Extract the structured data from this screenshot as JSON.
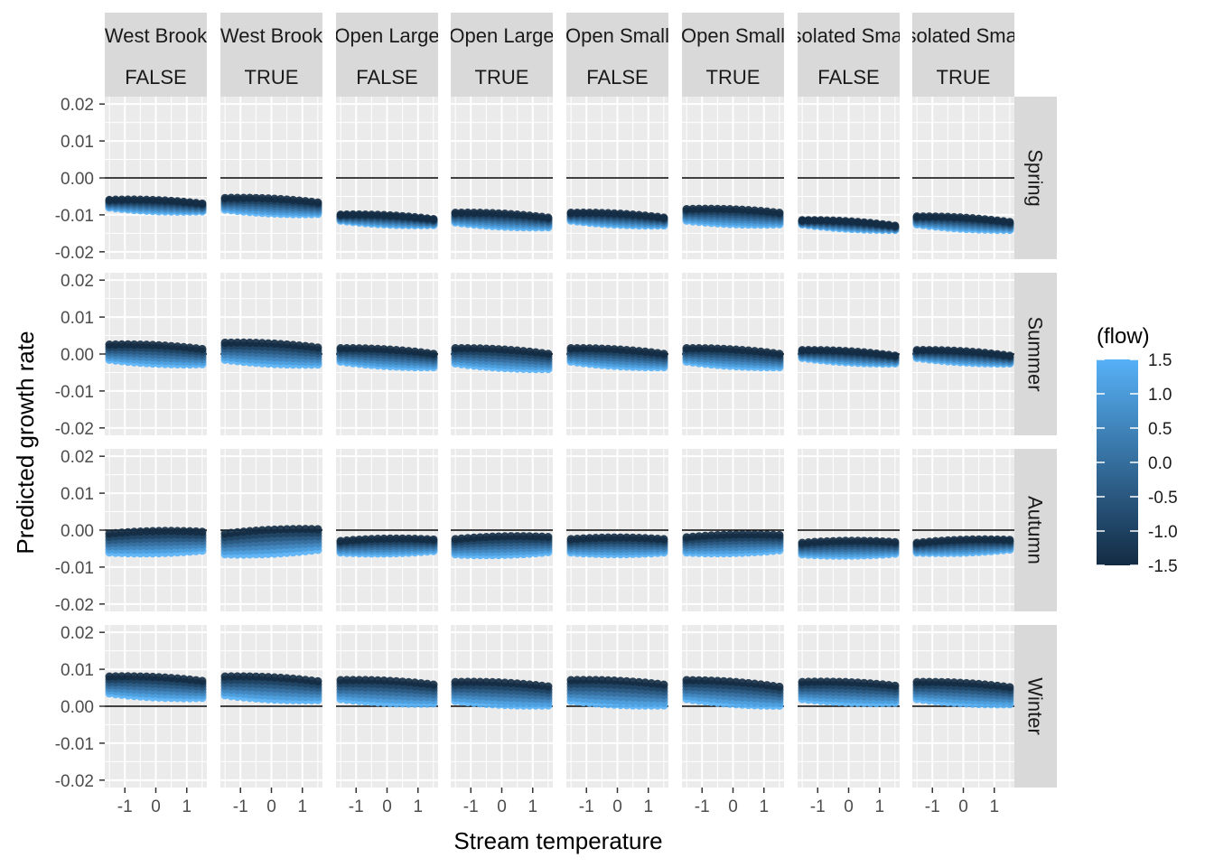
{
  "chart_data": {
    "type": "scatter",
    "title": "",
    "xlabel": "Stream temperature",
    "ylabel": "Predicted growth rate",
    "xlim": [
      -1.65,
      1.65
    ],
    "ylim": [
      -0.022,
      0.022
    ],
    "x_ticks": [
      "-1",
      "0",
      "1"
    ],
    "y_ticks": [
      "0.02",
      "0.01",
      "0.00",
      "-0.01",
      "-0.02"
    ],
    "reference_line_y": 0,
    "column_strips": [
      {
        "river": "West Brook",
        "flag": "FALSE"
      },
      {
        "river": "West Brook",
        "flag": "TRUE"
      },
      {
        "river": "Open Large",
        "flag": "FALSE"
      },
      {
        "river": "Open Large",
        "flag": "TRUE"
      },
      {
        "river": "Open Small",
        "flag": "FALSE"
      },
      {
        "river": "Open Small",
        "flag": "TRUE"
      },
      {
        "river": "Isolated Small",
        "flag": "FALSE"
      },
      {
        "river": "Isolated Small",
        "flag": "TRUE"
      }
    ],
    "row_strips": [
      "Spring",
      "Summer",
      "Autumn",
      "Winter"
    ],
    "temperature_values": [
      -1.5,
      -1.3,
      -1.1,
      -0.9,
      -0.7,
      -0.5,
      -0.3,
      -0.1,
      0.1,
      0.3,
      0.5,
      0.7,
      0.9,
      1.1,
      1.3,
      1.5
    ],
    "flow_values": [
      -1.5,
      -1.0,
      -0.5,
      0.0,
      0.5,
      1.0,
      1.5
    ],
    "color_legend": {
      "title": "(flow)",
      "labels": [
        "1.5",
        "1.0",
        "0.5",
        "0.0",
        "-0.5",
        "-1.0",
        "-1.5"
      ],
      "values": [
        1.5,
        1.0,
        0.5,
        0.0,
        -0.5,
        -1.0,
        -1.5
      ],
      "low_color": "#132B43",
      "high_color": "#56B1F7"
    },
    "panel_background": "#EBEBEB",
    "grid": true,
    "legend_position": "right",
    "series_description_fields": [
      "row",
      "col",
      "dark_line_y",
      "light_line_y",
      "slope"
    ],
    "series": [
      {
        "row": "Spring",
        "col": 0,
        "upper": -0.0055,
        "lower": -0.0085,
        "slope": -0.001
      },
      {
        "row": "Spring",
        "col": 1,
        "upper": -0.005,
        "lower": -0.009,
        "slope": -0.0012
      },
      {
        "row": "Spring",
        "col": 2,
        "upper": -0.0095,
        "lower": -0.012,
        "slope": -0.0012
      },
      {
        "row": "Spring",
        "col": 3,
        "upper": -0.009,
        "lower": -0.0125,
        "slope": -0.0013
      },
      {
        "row": "Spring",
        "col": 4,
        "upper": -0.009,
        "lower": -0.012,
        "slope": -0.0013
      },
      {
        "row": "Spring",
        "col": 5,
        "upper": -0.008,
        "lower": -0.012,
        "slope": -0.001
      },
      {
        "row": "Spring",
        "col": 6,
        "upper": -0.011,
        "lower": -0.013,
        "slope": -0.0015
      },
      {
        "row": "Spring",
        "col": 7,
        "upper": -0.01,
        "lower": -0.013,
        "slope": -0.0015
      },
      {
        "row": "Summer",
        "col": 0,
        "upper": 0.003,
        "lower": -0.002,
        "slope": -0.0012
      },
      {
        "row": "Summer",
        "col": 1,
        "upper": 0.0035,
        "lower": -0.002,
        "slope": -0.0013
      },
      {
        "row": "Summer",
        "col": 2,
        "upper": 0.002,
        "lower": -0.0025,
        "slope": -0.0015
      },
      {
        "row": "Summer",
        "col": 3,
        "upper": 0.002,
        "lower": -0.003,
        "slope": -0.0015
      },
      {
        "row": "Summer",
        "col": 4,
        "upper": 0.002,
        "lower": -0.0025,
        "slope": -0.0015
      },
      {
        "row": "Summer",
        "col": 5,
        "upper": 0.002,
        "lower": -0.0025,
        "slope": -0.0015
      },
      {
        "row": "Summer",
        "col": 6,
        "upper": 0.0015,
        "lower": -0.0015,
        "slope": -0.0015
      },
      {
        "row": "Summer",
        "col": 7,
        "upper": 0.0015,
        "lower": -0.0015,
        "slope": -0.0015
      },
      {
        "row": "Autumn",
        "col": 0,
        "upper": -0.0005,
        "lower": -0.0065,
        "slope": 0.0005
      },
      {
        "row": "Autumn",
        "col": 1,
        "upper": -0.0005,
        "lower": -0.007,
        "slope": 0.0012
      },
      {
        "row": "Autumn",
        "col": 2,
        "upper": -0.0025,
        "lower": -0.0065,
        "slope": 0.0004
      },
      {
        "row": "Autumn",
        "col": 3,
        "upper": -0.002,
        "lower": -0.007,
        "slope": 0.0006
      },
      {
        "row": "Autumn",
        "col": 4,
        "upper": -0.002,
        "lower": -0.0065,
        "slope": 0.0
      },
      {
        "row": "Autumn",
        "col": 5,
        "upper": -0.0015,
        "lower": -0.0065,
        "slope": 0.0006
      },
      {
        "row": "Autumn",
        "col": 6,
        "upper": -0.003,
        "lower": -0.007,
        "slope": 0.0002
      },
      {
        "row": "Autumn",
        "col": 7,
        "upper": -0.003,
        "lower": -0.0065,
        "slope": 0.0008
      },
      {
        "row": "Winter",
        "col": 0,
        "upper": 0.0085,
        "lower": 0.003,
        "slope": -0.0012
      },
      {
        "row": "Winter",
        "col": 1,
        "upper": 0.0085,
        "lower": 0.0025,
        "slope": -0.0013
      },
      {
        "row": "Winter",
        "col": 2,
        "upper": 0.0075,
        "lower": 0.0015,
        "slope": -0.0012
      },
      {
        "row": "Winter",
        "col": 3,
        "upper": 0.007,
        "lower": 0.001,
        "slope": -0.0012
      },
      {
        "row": "Winter",
        "col": 4,
        "upper": 0.0075,
        "lower": 0.001,
        "slope": -0.0012
      },
      {
        "row": "Winter",
        "col": 5,
        "upper": 0.0075,
        "lower": 0.0015,
        "slope": -0.0018
      },
      {
        "row": "Winter",
        "col": 6,
        "upper": 0.007,
        "lower": 0.0015,
        "slope": -0.001
      },
      {
        "row": "Winter",
        "col": 7,
        "upper": 0.007,
        "lower": 0.0015,
        "slope": -0.0014
      }
    ]
  }
}
